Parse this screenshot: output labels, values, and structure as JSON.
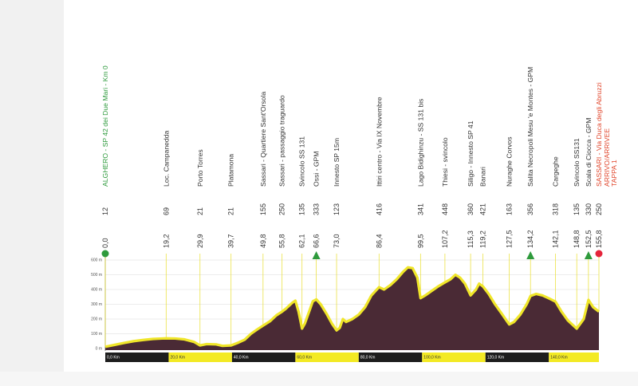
{
  "chart_data": {
    "type": "area",
    "title": "",
    "xlabel": "",
    "ylabel": "",
    "x_unit": "km",
    "y_unit": "m",
    "xlim": [
      0,
      155.8
    ],
    "ylim": [
      0,
      600
    ],
    "y_ticks": [
      "0 m",
      "100 m",
      "200 m",
      "300 m",
      "400 m",
      "500 m",
      "600 m"
    ],
    "km_markers": [
      {
        "km": 0,
        "label": "0,0 Km"
      },
      {
        "km": 20,
        "label": "20,0 Km"
      },
      {
        "km": 40,
        "label": "40,0 Km"
      },
      {
        "km": 60,
        "label": "60,0 Km"
      },
      {
        "km": 80,
        "label": "80,0 Km"
      },
      {
        "km": 100,
        "label": "100,0 Km"
      },
      {
        "km": 120,
        "label": "120,0 Km"
      },
      {
        "km": 140,
        "label": "140,0 Km"
      }
    ],
    "profile": [
      [
        0,
        12
      ],
      [
        3,
        25
      ],
      [
        6,
        38
      ],
      [
        9,
        50
      ],
      [
        12,
        58
      ],
      [
        15,
        65
      ],
      [
        18,
        68
      ],
      [
        19.2,
        69
      ],
      [
        22,
        68
      ],
      [
        25,
        62
      ],
      [
        28,
        45
      ],
      [
        29.9,
        21
      ],
      [
        32,
        30
      ],
      [
        35,
        28
      ],
      [
        37,
        18
      ],
      [
        39.7,
        21
      ],
      [
        42,
        40
      ],
      [
        44,
        60
      ],
      [
        46,
        100
      ],
      [
        48,
        130
      ],
      [
        49.8,
        155
      ],
      [
        52,
        185
      ],
      [
        54,
        225
      ],
      [
        55.8,
        250
      ],
      [
        57,
        270
      ],
      [
        59,
        310
      ],
      [
        60,
        325
      ],
      [
        61,
        250
      ],
      [
        62.1,
        135
      ],
      [
        63,
        170
      ],
      [
        64.5,
        260
      ],
      [
        65.5,
        320
      ],
      [
        66.6,
        333
      ],
      [
        68,
        300
      ],
      [
        70,
        230
      ],
      [
        71.5,
        170
      ],
      [
        73,
        123
      ],
      [
        74,
        140
      ],
      [
        75,
        200
      ],
      [
        76,
        180
      ],
      [
        78,
        200
      ],
      [
        80,
        230
      ],
      [
        82,
        280
      ],
      [
        84,
        360
      ],
      [
        86.4,
        416
      ],
      [
        88,
        400
      ],
      [
        90,
        430
      ],
      [
        92,
        470
      ],
      [
        94,
        520
      ],
      [
        95.5,
        550
      ],
      [
        97,
        545
      ],
      [
        98.5,
        480
      ],
      [
        99.5,
        341
      ],
      [
        101,
        360
      ],
      [
        103,
        390
      ],
      [
        105,
        420
      ],
      [
        107.2,
        448
      ],
      [
        109,
        470
      ],
      [
        110.5,
        500
      ],
      [
        112,
        480
      ],
      [
        113.5,
        440
      ],
      [
        115.3,
        360
      ],
      [
        117,
        400
      ],
      [
        118,
        440
      ],
      [
        119.2,
        421
      ],
      [
        121,
        370
      ],
      [
        123,
        300
      ],
      [
        125,
        240
      ],
      [
        127.5,
        163
      ],
      [
        129,
        180
      ],
      [
        131,
        230
      ],
      [
        133,
        300
      ],
      [
        134.2,
        356
      ],
      [
        136,
        370
      ],
      [
        138,
        360
      ],
      [
        140,
        340
      ],
      [
        142.1,
        318
      ],
      [
        144,
        250
      ],
      [
        146,
        190
      ],
      [
        148.8,
        135
      ],
      [
        151,
        200
      ],
      [
        152.5,
        330
      ],
      [
        154,
        280
      ],
      [
        155.8,
        250
      ]
    ],
    "points": [
      {
        "km": "0,0",
        "alt": "12",
        "name": "ALGHERO - SP 42 dei Due Mari - Km 0",
        "kind": "start"
      },
      {
        "km": "19,2",
        "alt": "69",
        "name": "Loc. Campanedda"
      },
      {
        "km": "29,9",
        "alt": "21",
        "name": "Porto Torres"
      },
      {
        "km": "39,7",
        "alt": "21",
        "name": "Platamona"
      },
      {
        "km": "49,8",
        "alt": "155",
        "name": "Sassari - Quartiere Sant'Orsola"
      },
      {
        "km": "55,8",
        "alt": "250",
        "name": "Sassari - passaggio traguardo"
      },
      {
        "km": "62,1",
        "alt": "135",
        "name": "Svincolo SS 131"
      },
      {
        "km": "66,6",
        "alt": "333",
        "name": "Ossi - GPM",
        "kind": "gpm"
      },
      {
        "km": "73,0",
        "alt": "123",
        "name": "Innesto SP 15m"
      },
      {
        "km": "86,4",
        "alt": "416",
        "name": "Ittiri centro - Via IX Novembre"
      },
      {
        "km": "99,5",
        "alt": "341",
        "name": "Lago Bidighinzu - SS 131 bis"
      },
      {
        "km": "107,2",
        "alt": "448",
        "name": "Thiesi - svincolo"
      },
      {
        "km": "115,3",
        "alt": "360",
        "name": "Siligo - Innesto SP 41"
      },
      {
        "km": "119,2",
        "alt": "421",
        "name": "Banari"
      },
      {
        "km": "127,5",
        "alt": "163",
        "name": "Nuraghe Corvos"
      },
      {
        "km": "134,2",
        "alt": "356",
        "name": "Salita Necropoli Mesu 'e Montes - GPM",
        "kind": "gpm"
      },
      {
        "km": "142,1",
        "alt": "318",
        "name": "Cargeghe"
      },
      {
        "km": "148,8",
        "alt": "135",
        "name": "Svincolo SS131"
      },
      {
        "km": "152,5",
        "alt": "330",
        "name": "Scala di Ciocca - GPM",
        "kind": "gpm"
      },
      {
        "km": "155,8",
        "alt": "250",
        "name": "SASSARI - Via Duca degli Abruzzi",
        "extra": [
          "ARRIVO/ARRIVEE",
          "TAPPA 1"
        ],
        "kind": "finish"
      }
    ]
  },
  "colors": {
    "profile_fill": "#4a2a35",
    "profile_line": "#f0e62a",
    "start_marker": "#2e9a3c",
    "finish_marker": "#e5243b",
    "gpm_marker": "#2e9a3c",
    "start_text": "#2e9a3c",
    "finish_text": "#e0452b",
    "label_text": "#333333",
    "ruler_dark": "#1d1d1d",
    "ruler_yellow": "#f3ea24"
  }
}
